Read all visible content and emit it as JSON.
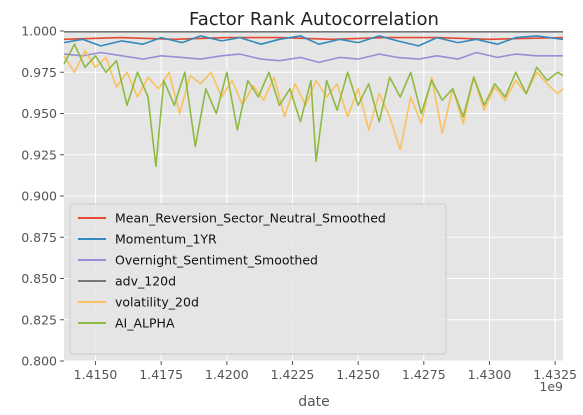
{
  "chart_data": {
    "type": "line",
    "title": "Factor Rank Autocorrelation",
    "xlabel": "date",
    "ylabel": "",
    "x_offset_label": "1e9",
    "xlim": [
      1.4138,
      1.4328
    ],
    "ylim": [
      0.8,
      1.0
    ],
    "xticks": [
      1.415,
      1.4175,
      1.42,
      1.4225,
      1.425,
      1.4275,
      1.43,
      1.4325
    ],
    "xtick_labels": [
      "1.4150",
      "1.4175",
      "1.4200",
      "1.4225",
      "1.4250",
      "1.4275",
      "1.4300",
      "1.4325"
    ],
    "yticks": [
      0.8,
      0.825,
      0.85,
      0.875,
      0.9,
      0.925,
      0.95,
      0.975,
      1.0
    ],
    "ytick_labels": [
      "0.800",
      "0.825",
      "0.850",
      "0.875",
      "0.900",
      "0.925",
      "0.950",
      "0.975",
      "1.000"
    ],
    "grid": true,
    "legend_position": "lower-left",
    "background": "#e5e5e5",
    "series": [
      {
        "name": "Mean_Reversion_Sector_Neutral_Smoothed",
        "color": "#e24a33",
        "x": [
          1.4138,
          1.416,
          1.418,
          1.42,
          1.422,
          1.424,
          1.426,
          1.428,
          1.43,
          1.4328
        ],
        "values": [
          0.995,
          0.996,
          0.995,
          0.996,
          0.996,
          0.995,
          0.996,
          0.996,
          0.995,
          0.996
        ]
      },
      {
        "name": "Momentum_1YR",
        "color": "#348abd",
        "x": [
          1.4138,
          1.4145,
          1.4152,
          1.416,
          1.4168,
          1.4175,
          1.4183,
          1.419,
          1.4198,
          1.4205,
          1.4213,
          1.422,
          1.4228,
          1.4235,
          1.4243,
          1.425,
          1.4258,
          1.4265,
          1.4273,
          1.428,
          1.4288,
          1.4295,
          1.4303,
          1.431,
          1.4318,
          1.4328
        ],
        "values": [
          0.993,
          0.995,
          0.991,
          0.994,
          0.992,
          0.996,
          0.993,
          0.997,
          0.994,
          0.996,
          0.992,
          0.995,
          0.997,
          0.992,
          0.995,
          0.993,
          0.997,
          0.994,
          0.991,
          0.996,
          0.993,
          0.995,
          0.992,
          0.996,
          0.997,
          0.995
        ]
      },
      {
        "name": "Overnight_Sentiment_Smoothed",
        "color": "#988ed5",
        "x": [
          1.4138,
          1.4145,
          1.4152,
          1.416,
          1.4168,
          1.4175,
          1.4183,
          1.419,
          1.4198,
          1.4205,
          1.4213,
          1.422,
          1.4228,
          1.4235,
          1.4243,
          1.425,
          1.4258,
          1.4265,
          1.4273,
          1.428,
          1.4288,
          1.4295,
          1.4303,
          1.431,
          1.4318,
          1.4328
        ],
        "values": [
          0.986,
          0.985,
          0.987,
          0.985,
          0.983,
          0.985,
          0.984,
          0.983,
          0.985,
          0.986,
          0.983,
          0.982,
          0.984,
          0.981,
          0.984,
          0.983,
          0.986,
          0.984,
          0.983,
          0.985,
          0.983,
          0.987,
          0.984,
          0.986,
          0.985,
          0.985
        ]
      },
      {
        "name": "adv_120d",
        "color": "#777777",
        "x": [
          1.4138,
          1.416,
          1.418,
          1.42,
          1.422,
          1.424,
          1.426,
          1.428,
          1.43,
          1.4328
        ],
        "values": [
          0.9995,
          0.9995,
          0.9995,
          0.9995,
          0.9995,
          0.9995,
          0.9995,
          0.9995,
          0.9995,
          0.9995
        ]
      },
      {
        "name": "volatility_20d",
        "color": "#fbc15e",
        "x": [
          1.4138,
          1.4142,
          1.4146,
          1.415,
          1.4154,
          1.4158,
          1.4162,
          1.4166,
          1.417,
          1.4174,
          1.4178,
          1.4182,
          1.4186,
          1.419,
          1.4194,
          1.4198,
          1.4202,
          1.4206,
          1.421,
          1.4214,
          1.4218,
          1.4222,
          1.4226,
          1.423,
          1.4234,
          1.4238,
          1.4242,
          1.4246,
          1.425,
          1.4254,
          1.4258,
          1.4262,
          1.4266,
          1.427,
          1.4274,
          1.4278,
          1.4282,
          1.4286,
          1.429,
          1.4294,
          1.4298,
          1.4302,
          1.4306,
          1.431,
          1.4314,
          1.4318,
          1.4322,
          1.4326,
          1.4328
        ],
        "values": [
          0.985,
          0.975,
          0.988,
          0.978,
          0.984,
          0.966,
          0.975,
          0.96,
          0.972,
          0.965,
          0.975,
          0.95,
          0.973,
          0.968,
          0.975,
          0.96,
          0.97,
          0.955,
          0.967,
          0.958,
          0.972,
          0.948,
          0.968,
          0.955,
          0.97,
          0.96,
          0.968,
          0.948,
          0.965,
          0.94,
          0.962,
          0.948,
          0.928,
          0.96,
          0.944,
          0.972,
          0.938,
          0.965,
          0.944,
          0.972,
          0.952,
          0.966,
          0.958,
          0.97,
          0.962,
          0.975,
          0.968,
          0.962,
          0.965
        ]
      },
      {
        "name": "AI_ALPHA",
        "color": "#8eba42",
        "x": [
          1.4138,
          1.4142,
          1.4146,
          1.415,
          1.4154,
          1.4158,
          1.4162,
          1.4166,
          1.417,
          1.4173,
          1.4176,
          1.418,
          1.4184,
          1.4188,
          1.4192,
          1.4196,
          1.42,
          1.4204,
          1.4208,
          1.4212,
          1.4216,
          1.422,
          1.4224,
          1.4228,
          1.4232,
          1.4234,
          1.4238,
          1.4242,
          1.4246,
          1.425,
          1.4254,
          1.4258,
          1.4262,
          1.4266,
          1.427,
          1.4274,
          1.4278,
          1.4282,
          1.4286,
          1.429,
          1.4294,
          1.4298,
          1.4302,
          1.4306,
          1.431,
          1.4314,
          1.4318,
          1.4322,
          1.4326,
          1.4328
        ],
        "values": [
          0.98,
          0.992,
          0.978,
          0.985,
          0.975,
          0.982,
          0.955,
          0.975,
          0.96,
          0.918,
          0.97,
          0.955,
          0.975,
          0.93,
          0.965,
          0.95,
          0.975,
          0.94,
          0.97,
          0.96,
          0.975,
          0.955,
          0.965,
          0.945,
          0.97,
          0.921,
          0.97,
          0.952,
          0.975,
          0.955,
          0.968,
          0.945,
          0.972,
          0.96,
          0.975,
          0.95,
          0.97,
          0.958,
          0.965,
          0.948,
          0.972,
          0.955,
          0.968,
          0.96,
          0.975,
          0.962,
          0.978,
          0.97,
          0.975,
          0.973
        ]
      }
    ]
  }
}
